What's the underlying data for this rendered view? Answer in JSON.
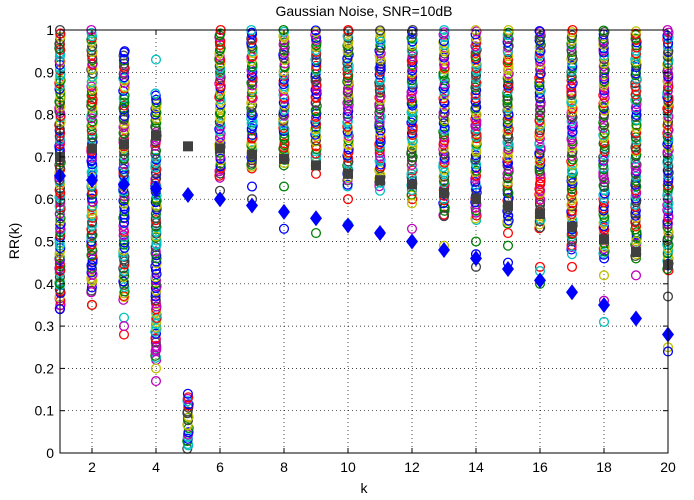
{
  "chart_data": {
    "type": "scatter",
    "title": "Gaussian Noise, SNR=10dB",
    "xlabel": "k",
    "ylabel": "RR(k)",
    "xlim": [
      1,
      20
    ],
    "ylim": [
      0,
      1
    ],
    "x_ticks": [
      2,
      4,
      6,
      8,
      10,
      12,
      14,
      16,
      18,
      20
    ],
    "y_ticks": [
      0,
      0.1,
      0.2,
      0.3,
      0.4,
      0.5,
      0.6,
      0.7,
      0.8,
      0.9,
      1
    ],
    "x_tick_labels": [
      "2",
      "4",
      "6",
      "8",
      "10",
      "12",
      "14",
      "16",
      "18",
      "20"
    ],
    "y_tick_labels": [
      "0",
      "0.1",
      "0.2",
      "0.3",
      "0.4",
      "0.5",
      "0.6",
      "0.7",
      "0.8",
      "0.9",
      "1"
    ],
    "grid": true,
    "grid_style": "dotted",
    "palette": [
      "#0000ff",
      "#008000",
      "#ff0000",
      "#00bfbf",
      "#bf00bf",
      "#bfbf00",
      "#404040"
    ],
    "circle_clusters": [
      {
        "x": 1,
        "min": 0.34,
        "max": 1.0,
        "sparse": [
          0.34,
          0.4,
          0.43
        ]
      },
      {
        "x": 2,
        "min": 0.38,
        "max": 1.0,
        "sparse": [
          0.35,
          0.35
        ]
      },
      {
        "x": 3,
        "min": 0.36,
        "max": 0.95,
        "sparse": [
          0.28,
          0.32,
          0.3
        ]
      },
      {
        "x": 4,
        "min": 0.22,
        "max": 0.85,
        "sparse": [
          0.93,
          0.17,
          0.2
        ]
      },
      {
        "x": 5,
        "min": 0.01,
        "max": 0.14,
        "sparse": []
      },
      {
        "x": 6,
        "min": 0.65,
        "max": 1.0,
        "sparse": [
          0.6,
          0.62
        ]
      },
      {
        "x": 7,
        "min": 0.67,
        "max": 1.0,
        "sparse": [
          0.6,
          0.63
        ]
      },
      {
        "x": 8,
        "min": 0.68,
        "max": 1.0,
        "sparse": [
          0.53,
          0.63
        ]
      },
      {
        "x": 9,
        "min": 0.68,
        "max": 1.0,
        "sparse": [
          0.52,
          0.66
        ]
      },
      {
        "x": 10,
        "min": 0.63,
        "max": 1.0,
        "sparse": [
          0.6,
          0.54
        ]
      },
      {
        "x": 11,
        "min": 0.63,
        "max": 1.0,
        "sparse": [
          0.62,
          0.52
        ]
      },
      {
        "x": 12,
        "min": 0.6,
        "max": 1.0,
        "sparse": [
          0.53,
          0.59
        ]
      },
      {
        "x": 13,
        "min": 0.56,
        "max": 1.0,
        "sparse": [
          0.49,
          0.56
        ]
      },
      {
        "x": 14,
        "min": 0.55,
        "max": 1.0,
        "sparse": [
          0.44,
          0.47,
          0.5
        ]
      },
      {
        "x": 15,
        "min": 0.54,
        "max": 1.0,
        "sparse": [
          0.45,
          0.49,
          0.52
        ]
      },
      {
        "x": 16,
        "min": 0.53,
        "max": 1.0,
        "sparse": [
          0.4,
          0.44,
          0.43
        ]
      },
      {
        "x": 17,
        "min": 0.48,
        "max": 1.0,
        "sparse": [
          0.44,
          0.47
        ]
      },
      {
        "x": 18,
        "min": 0.46,
        "max": 1.0,
        "sparse": [
          0.31,
          0.36,
          0.42
        ]
      },
      {
        "x": 19,
        "min": 0.46,
        "max": 1.0,
        "sparse": [
          0.42,
          0.5
        ]
      },
      {
        "x": 20,
        "min": 0.43,
        "max": 1.0,
        "sparse": [
          0.25,
          0.37,
          0.24
        ]
      }
    ],
    "series": [
      {
        "marker": "diamond",
        "color": "#0000ff",
        "x": [
          1,
          2,
          3,
          4,
          5,
          6,
          7,
          8,
          9,
          10,
          11,
          12,
          13,
          14,
          15,
          16,
          17,
          18,
          19,
          20
        ],
        "y": [
          0.655,
          0.645,
          0.635,
          0.625,
          0.61,
          0.6,
          0.585,
          0.57,
          0.555,
          0.538,
          0.52,
          0.5,
          0.48,
          0.46,
          0.435,
          0.408,
          0.38,
          0.35,
          0.318,
          0.28
        ]
      },
      {
        "marker": "square",
        "color": "#404040",
        "x": [
          1,
          2,
          3,
          4,
          5,
          6,
          7,
          8,
          9,
          10,
          11,
          12,
          13,
          14,
          15,
          16,
          17,
          18,
          19,
          20
        ],
        "y": [
          0.7,
          0.72,
          0.73,
          0.75,
          0.725,
          0.72,
          0.705,
          0.695,
          0.68,
          0.66,
          0.645,
          0.635,
          0.615,
          0.6,
          0.585,
          0.565,
          0.535,
          0.505,
          0.475,
          0.445
        ]
      }
    ]
  }
}
